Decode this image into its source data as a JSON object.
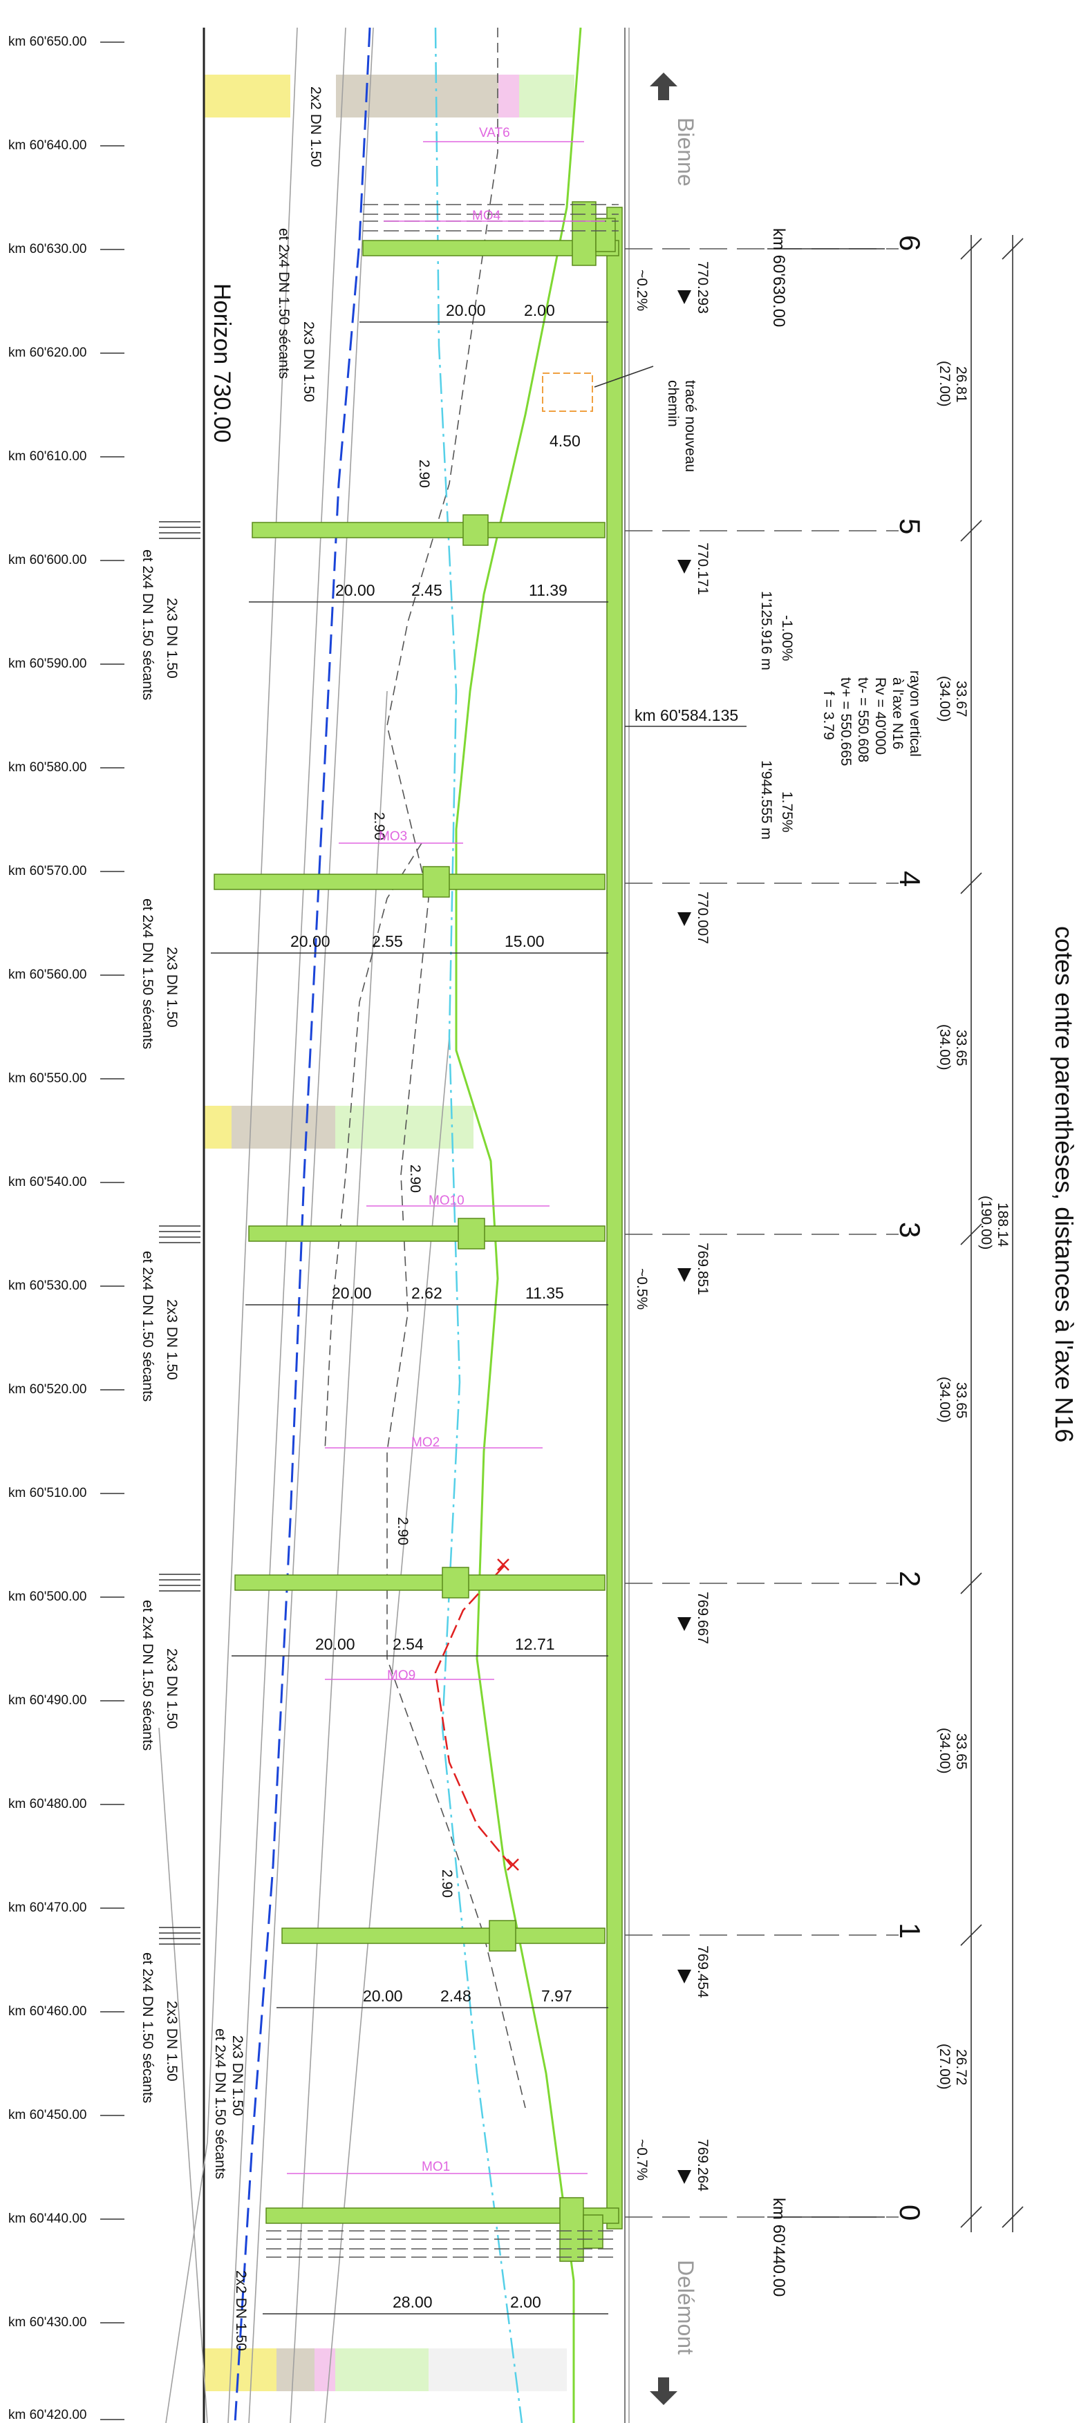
{
  "km_marks": [
    "km 60'650.00",
    "km 60'640.00",
    "km 60'630.00",
    "km 60'620.00",
    "km 60'610.00",
    "km 60'600.00",
    "km 60'590.00",
    "km 60'580.00",
    "km 60'570.00",
    "km 60'560.00",
    "km 60'550.00",
    "km 60'540.00",
    "km 60'530.00",
    "km 60'520.00",
    "km 60'510.00",
    "km 60'500.00",
    "km 60'490.00",
    "km 60'480.00",
    "km 60'470.00",
    "km 60'460.00",
    "km 60'450.00",
    "km 60'440.00",
    "km 60'430.00",
    "km 60'420.00"
  ],
  "horizon": "Horizon 730.00",
  "title": "cotes entre parenthèses, distances à l'axe N16",
  "direction_top": "Bienne",
  "direction_bottom": "Delémont",
  "km_start": "km 60'630.00",
  "km_end": "km 60'440.00",
  "km_vertex": "km 60'584.135",
  "new_path": [
    "tracé nouveau",
    "chemin"
  ],
  "vertical_curve": [
    "rayon vertical",
    "à l'axe N16",
    "Rv = 40'000",
    "tv- = 550.608",
    "tv+ = 550.665",
    "f = 3.79"
  ],
  "grade_left": "-1.00%",
  "grade_left_len": "1'125.916 m",
  "grade_right": "1.75%",
  "grade_right_len": "1'944.555 m",
  "axes": [
    {
      "num": "6",
      "elev": "770.293",
      "slope": "~0.2%"
    },
    {
      "num": "5",
      "elev": "770.171",
      "slope": ""
    },
    {
      "num": "4",
      "elev": "770.007",
      "slope": ""
    },
    {
      "num": "3",
      "elev": "769.851",
      "slope": "~0.5%"
    },
    {
      "num": "2",
      "elev": "769.667",
      "slope": ""
    },
    {
      "num": "1",
      "elev": "769.454",
      "slope": ""
    },
    {
      "num": "0",
      "elev": "769.264",
      "slope": "~0.7%"
    }
  ],
  "spans": [
    {
      "len": "26.81",
      "axis": "(27.00)"
    },
    {
      "len": "33.67",
      "axis": "(34.00)"
    },
    {
      "len": "33.65",
      "axis": "(34.00)"
    },
    {
      "len": "33.65",
      "axis": "(34.00)"
    },
    {
      "len": "33.65",
      "axis": "(34.00)"
    },
    {
      "len": "26.72",
      "axis": "(27.00)"
    }
  ],
  "total_len": "188.14",
  "total_axis": "(190.00)",
  "piles": [
    {
      "row": "et 2x4 DN 1.50 sécants",
      "row2": "2x3 DN 1.50"
    },
    {
      "row": "et 2x4 DN 1.50 sécants",
      "row2": "2x3 DN 1.50"
    },
    {
      "row": "et 2x4 DN 1.50 sécants",
      "row2": "2x3 DN 1.50"
    },
    {
      "row": "et 2x4 DN 1.50 sécants",
      "row2": "2x3 DN 1.50"
    },
    {
      "row": "et 2x4 DN 1.50 sécants",
      "row2": "2x3 DN 1.50"
    }
  ],
  "pile_top": "2x2 DN 1.50",
  "pile_top2": "2x3 DN 1.50",
  "pile_top3": "et 2x4 DN 1.50 sécants",
  "pile_bot": "2x3 DN 1.50",
  "pile_bot2": "et 2x4 DN 1.50 sécants",
  "pile_bot3": "2x2 DN 1.50",
  "dims": {
    "a6_1": "20.00",
    "a6_2": "2.00",
    "w_path": "4.50",
    "a5_1": "20.00",
    "a5_2": "2.45",
    "a5_3": "11.39",
    "a5_v": "2.90",
    "a4_1": "20.00",
    "a4_2": "2.55",
    "a4_3": "15.00",
    "a4_v": "2.90",
    "a3_1": "20.00",
    "a3_2": "2.62",
    "a3_3": "11.35",
    "a3_v": "2.90",
    "a2_1": "20.00",
    "a2_2": "2.54",
    "a2_3": "12.71",
    "a2_v": "2.90",
    "a1_1": "20.00",
    "a1_2": "2.48",
    "a1_3": "7.97",
    "a1_v": "2.90",
    "a0_1": "28.00",
    "a0_2": "2.00"
  },
  "mo_labels": [
    "VAT6",
    "MO4",
    "MO3",
    "MO10",
    "MO2",
    "MO9",
    "MO1"
  ],
  "colors": {
    "deck": "#a6e060",
    "deck_stroke": "#5a8a1a",
    "green_line": "#7fd832",
    "blue": "#1a44d8",
    "cyan": "#55d0e8",
    "pink": "#e066e0",
    "yellow": "#f7ef8e",
    "gravel": "#d8d2c4",
    "lightgreen": "#dcf5c8",
    "orange": "#f0a040",
    "red": "#e02020"
  }
}
